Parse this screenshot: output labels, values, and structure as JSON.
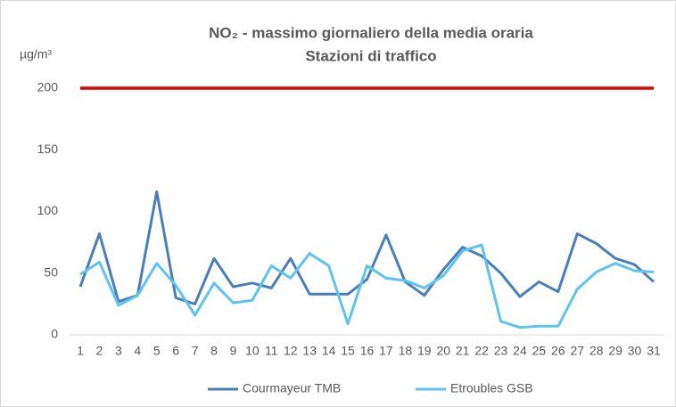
{
  "chart_data": {
    "type": "line",
    "title": [
      "NO₂ - massimo giornaliero della media oraria",
      "Stazioni di traffico"
    ],
    "y_label": "µg/m³",
    "categories": [
      "1",
      "2",
      "3",
      "4",
      "5",
      "6",
      "7",
      "8",
      "9",
      "10",
      "11",
      "12",
      "13",
      "14",
      "15",
      "16",
      "17",
      "18",
      "19",
      "20",
      "21",
      "22",
      "23",
      "24",
      "25",
      "26",
      "27",
      "28",
      "29",
      "30",
      "31"
    ],
    "series": [
      {
        "name": "Courmayeur TMB",
        "color": "#4a7ebb",
        "values": [
          39,
          82,
          27,
          32,
          116,
          30,
          25,
          62,
          39,
          42,
          38,
          62,
          33,
          33,
          33,
          45,
          81,
          43,
          32,
          53,
          71,
          64,
          50,
          31,
          43,
          35,
          82,
          74,
          62,
          57,
          43
        ]
      },
      {
        "name": "Etroubles GSB",
        "color": "#5bc4f1",
        "values": [
          49,
          59,
          24,
          32,
          58,
          40,
          16,
          42,
          26,
          28,
          56,
          46,
          66,
          56,
          9,
          56,
          46,
          44,
          38,
          48,
          68,
          73,
          11,
          6,
          7,
          7,
          37,
          51,
          58,
          52,
          51
        ]
      }
    ],
    "threshold": {
      "value": 200,
      "color": "#e00000"
    },
    "ylim": [
      0,
      200
    ],
    "yticks": [
      0,
      50,
      100,
      150,
      200
    ],
    "grid": false,
    "legend": "bottom"
  }
}
